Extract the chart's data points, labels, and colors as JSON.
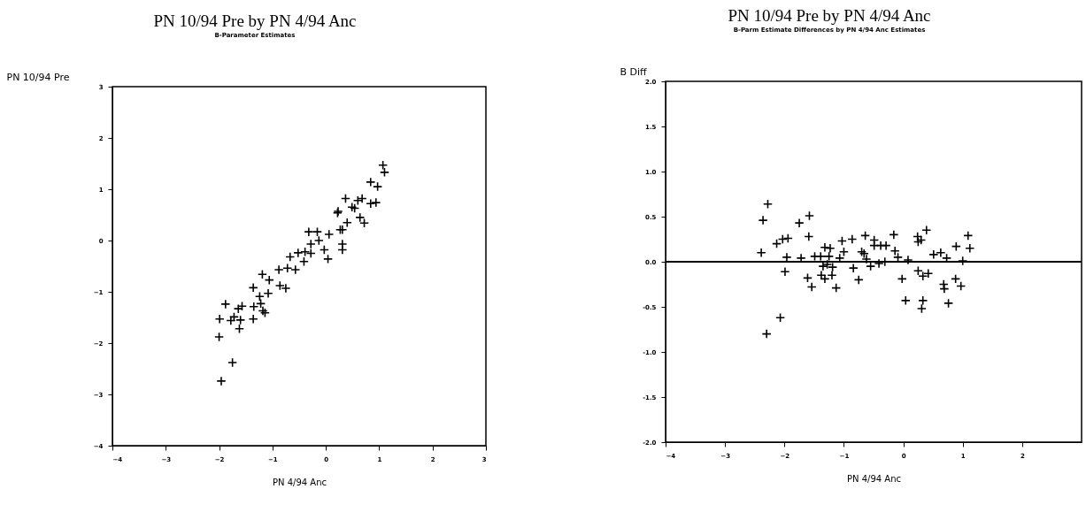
{
  "chart_data": [
    {
      "type": "scatter",
      "title": "PN 10/94 Pre by PN 4/94 Anc",
      "subtitle": "B-Parameter Estimates",
      "xlabel": "PN 4/94 Anc",
      "ylabel": "PN 10/94 Pre",
      "marker": "cross",
      "grid": false,
      "xlim": [
        -4,
        3
      ],
      "xticks": [
        -4,
        -3,
        -2,
        -1,
        0,
        1,
        2,
        3
      ],
      "ylim": [
        -4,
        3
      ],
      "yticks": [
        -4,
        -3,
        -2,
        -1,
        0,
        1,
        2,
        3
      ],
      "series": [
        {
          "color": "#000000",
          "x": [
            1.07,
            1.1,
            0.84,
            0.97,
            0.37,
            0.6,
            0.68,
            0.84,
            0.94,
            0.23,
            0.22,
            0.49,
            0.54,
            0.4,
            0.64,
            0.72,
            0.27,
            0.31,
            0.06,
            -0.32,
            -0.16,
            -0.13,
            -0.28,
            0.31,
            0.31,
            -0.03,
            0.04,
            -0.67,
            -0.52,
            -0.39,
            -0.28,
            -0.41,
            -0.88,
            -0.72,
            -0.57,
            -1.19,
            -1.06,
            -0.86,
            -0.75,
            -1.36,
            -1.08,
            -1.24,
            -1.22,
            -1.35,
            -1.57,
            -1.64,
            -1.88,
            -1.18,
            -1.14,
            -1.72,
            -1.99,
            -1.78,
            -1.6,
            -1.36,
            -1.62,
            -2.0,
            -1.75,
            -1.96
          ],
          "values": [
            1.47,
            1.33,
            1.14,
            1.05,
            0.82,
            0.78,
            0.82,
            0.72,
            0.74,
            0.57,
            0.54,
            0.65,
            0.63,
            0.35,
            0.45,
            0.34,
            0.21,
            0.21,
            0.12,
            0.17,
            0.17,
            0.0,
            -0.07,
            -0.07,
            -0.18,
            -0.18,
            -0.36,
            -0.32,
            -0.24,
            -0.22,
            -0.25,
            -0.41,
            -0.57,
            -0.54,
            -0.57,
            -0.66,
            -0.77,
            -0.88,
            -0.93,
            -0.92,
            -1.03,
            -1.09,
            -1.23,
            -1.29,
            -1.28,
            -1.33,
            -1.24,
            -1.37,
            -1.41,
            -1.49,
            -1.53,
            -1.56,
            -1.55,
            -1.53,
            -1.72,
            -1.88,
            -2.38,
            -2.74
          ]
        }
      ]
    },
    {
      "type": "scatter",
      "title": "PN 10/94 Pre by PN 4/94 Anc",
      "subtitle": "B-Parm Estimate Differences by PN 4/94 Anc Estimates",
      "xlabel": "PN 4/94 Anc",
      "ylabel": "B Diff",
      "marker": "cross",
      "grid": false,
      "xlim": [
        -4,
        3
      ],
      "xticks": [
        -4,
        -3,
        -2,
        -1,
        0,
        1,
        2
      ],
      "ylim": [
        -2,
        2
      ],
      "yticks": [
        {
          "value": -2,
          "label": "-2.0"
        },
        {
          "value": -1.5,
          "label": "-1.5"
        },
        {
          "value": -1,
          "label": "-1.0"
        },
        {
          "value": -0.5,
          "label": "-0.5"
        },
        {
          "value": 0,
          "label": "0.0"
        },
        {
          "value": 0.5,
          "label": "0.5"
        },
        {
          "value": 1,
          "label": "1.0"
        },
        {
          "value": 1.5,
          "label": "1.5"
        },
        {
          "value": 2,
          "label": "2.0"
        }
      ],
      "ref_lines": [
        {
          "axis": "y",
          "value": 0,
          "color": "#000000"
        }
      ],
      "series": [
        {
          "color": "#000000",
          "x": [
            -2.36,
            -2.28,
            -2.39,
            -2.3,
            -2.07,
            -2.13,
            -2.03,
            -1.94,
            -1.99,
            -1.96,
            -1.72,
            -1.75,
            -1.59,
            -1.61,
            -1.54,
            -1.58,
            -1.49,
            -1.39,
            -1.32,
            -1.35,
            -1.28,
            -1.38,
            -1.03,
            -0.86,
            -0.64,
            -0.49,
            -0.49,
            -0.38,
            -0.29,
            -0.16,
            -0.14,
            -0.09,
            0.08,
            0.24,
            0.25,
            0.3,
            0.39,
            0.51,
            0.63,
            0.73,
            1.0,
            0.89,
            1.09,
            1.12,
            -1.23,
            -1.25,
            -1.0,
            -0.7,
            -0.66,
            -1.07,
            -0.62,
            -1.19,
            -1.2,
            -1.32,
            -1.13,
            -0.84,
            -0.75,
            -0.55,
            -0.41,
            -0.31,
            -0.02,
            0.04,
            0.25,
            0.33,
            0.42,
            0.33,
            0.31,
            0.68,
            0.69,
            0.88,
            0.97,
            0.76
          ],
          "values": [
            0.46,
            0.64,
            0.1,
            -0.8,
            -0.62,
            0.2,
            0.25,
            0.26,
            -0.11,
            0.05,
            0.04,
            0.43,
            0.28,
            -0.18,
            -0.28,
            0.51,
            0.06,
            0.06,
            0.16,
            -0.05,
            -0.03,
            -0.15,
            0.23,
            0.25,
            0.29,
            0.24,
            0.18,
            0.18,
            0.18,
            0.3,
            0.12,
            0.05,
            0.02,
            0.28,
            0.22,
            0.24,
            0.35,
            0.08,
            0.1,
            0.04,
            0.01,
            0.17,
            0.29,
            0.15,
            0.15,
            0.06,
            0.11,
            0.11,
            0.09,
            0.04,
            0.03,
            -0.06,
            -0.15,
            -0.19,
            -0.29,
            -0.07,
            -0.2,
            -0.05,
            -0.02,
            0.0,
            -0.19,
            -0.43,
            -0.1,
            -0.16,
            -0.13,
            -0.43,
            -0.52,
            -0.25,
            -0.3,
            -0.19,
            -0.27,
            -0.46
          ]
        }
      ]
    }
  ]
}
